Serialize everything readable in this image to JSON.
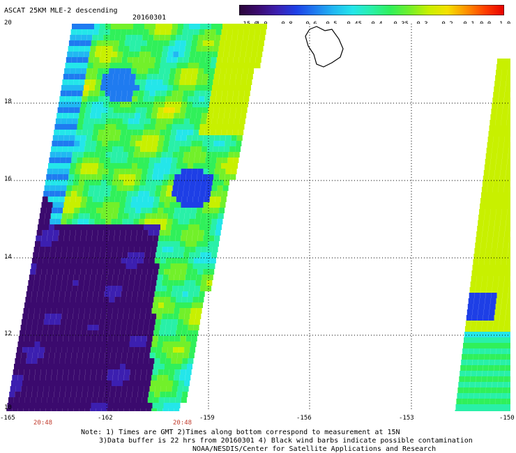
{
  "header": {
    "title": "ASCAT 25KM MLE-2 descending",
    "date": "20160301"
  },
  "colorbar": {
    "labels": [
      "-15.0",
      "-1.0",
      "-0.8",
      "-0.6",
      "-0.5",
      "-0.45",
      "-0.4",
      "-0.35",
      "-0.3",
      "-0.2",
      "-0.1",
      "0.0",
      "1.0"
    ],
    "colors": [
      "#2a0638",
      "#3b0a6e",
      "#3c1fb0",
      "#1e3fe6",
      "#1f7bf0",
      "#21b8f2",
      "#24e6ea",
      "#29f0a8",
      "#30f05a",
      "#72f02a",
      "#c8f000",
      "#f5e100",
      "#ff9200",
      "#ff3d00",
      "#e60000"
    ]
  },
  "axes": {
    "lat_labels": [
      "20",
      "18",
      "16",
      "14",
      "12",
      "10"
    ],
    "lon_labels": [
      "-165",
      "-162",
      "-159",
      "-156",
      "-153",
      "-150"
    ],
    "times": [
      "20:48",
      "20:48"
    ]
  },
  "notes": {
    "line1": "Note: 1) Times are GMT 2)Times along bottom correspond to measurement at 15N",
    "line2": "3)Data buffer is 22 hrs from 20160301 4) Black wind barbs indicate possible contamination",
    "line3": "NOAA/NESDIS/Center for Satellite Applications and Research"
  },
  "style": {
    "purple": "#3b0a6e",
    "blue": "#1e3fe6",
    "cyan": "#24e6ea",
    "green": "#30f05a",
    "lime": "#a6f000",
    "grid": "#000000"
  }
}
